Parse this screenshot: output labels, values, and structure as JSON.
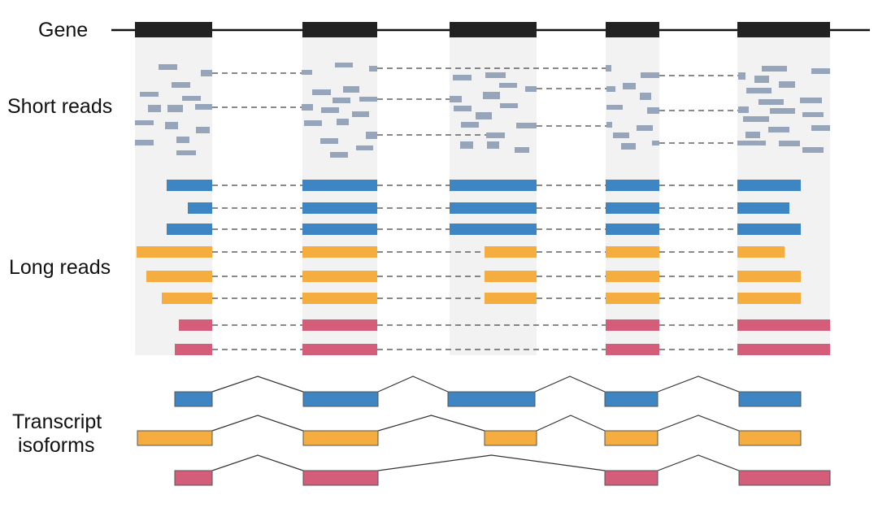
{
  "labels": {
    "gene": "Gene",
    "short_reads": "Short reads",
    "long_reads": "Long reads",
    "transcript_line1": "Transcript",
    "transcript_line2": "isoforms"
  },
  "colors": {
    "exon": "#222222",
    "band": "#f2f2f2",
    "short_read": "#97a5ba",
    "blue": "#3d85c3",
    "orange": "#f6ad3f",
    "pink": "#d45d79"
  },
  "exon_count": 5,
  "isoforms": [
    {
      "color": "blue",
      "exons": [
        0,
        1,
        2,
        3,
        4
      ]
    },
    {
      "color": "orange",
      "exons": [
        0,
        1,
        2,
        3,
        4
      ]
    },
    {
      "color": "pink",
      "exons": [
        0,
        1,
        3,
        4
      ]
    }
  ],
  "long_reads": [
    {
      "isoform": "blue",
      "exons": [
        0,
        1,
        2,
        3,
        4
      ]
    },
    {
      "isoform": "blue",
      "exons": [
        0,
        1,
        2,
        3,
        4
      ]
    },
    {
      "isoform": "blue",
      "exons": [
        0,
        1,
        2,
        3,
        4
      ]
    },
    {
      "isoform": "orange",
      "exons": [
        0,
        1,
        2,
        3,
        4
      ]
    },
    {
      "isoform": "orange",
      "exons": [
        0,
        1,
        2,
        3,
        4
      ]
    },
    {
      "isoform": "orange",
      "exons": [
        0,
        1,
        2,
        3,
        4
      ]
    },
    {
      "isoform": "pink",
      "exons": [
        0,
        1,
        3,
        4
      ]
    },
    {
      "isoform": "pink",
      "exons": [
        0,
        1,
        3,
        4
      ]
    }
  ]
}
